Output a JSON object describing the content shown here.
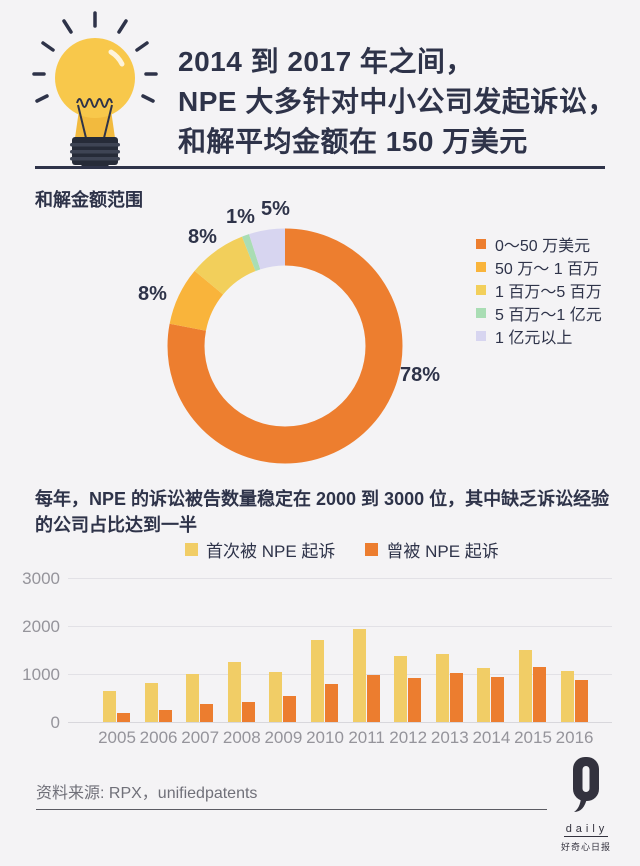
{
  "header": {
    "title_lines": [
      "2014 到 2017 年之间，",
      "NPE 大多针对中小公司发起诉讼，",
      "和解平均金额在 150 万美元"
    ]
  },
  "lawsuit_section": {
    "paragraph": "每年，NPE 的诉讼被告数量稳定在 2000 到 3000 位，其中缺乏诉讼经验的公司占比达到一半"
  },
  "footer": {
    "source": "资料来源: RPX，unifiedpatents",
    "logo": {
      "daily": "daily",
      "brand": "好奇心日报"
    }
  },
  "theme": {
    "background": "#F4F3F5",
    "text_dark": "#2E3349",
    "text_gray": "#95949B",
    "accent_orange": "#EC7D2F",
    "accent_yellow": "#F1CD66"
  },
  "chart_data": [
    {
      "type": "pie",
      "subtype": "donut",
      "title": "和解金额范围",
      "legend_position": "right",
      "slices": [
        {
          "label": "0～50 万美元",
          "value": 78,
          "pct": "78%",
          "color": "#ED7E2F"
        },
        {
          "label": "50 万～ 1 百万",
          "value": 8,
          "pct": "8%",
          "color": "#F9B43B"
        },
        {
          "label": "1 百万～5 百万",
          "value": 8,
          "pct": "8%",
          "color": "#F2CF5B"
        },
        {
          "label": "5 百万～1 亿元",
          "value": 1,
          "pct": "1%",
          "color": "#A9DDB4"
        },
        {
          "label": "1 亿元以上",
          "value": 5,
          "pct": "5%",
          "color": "#D7D5F0"
        }
      ]
    },
    {
      "type": "bar",
      "title": "每年，NPE 的诉讼被告数量稳定在 2000 到 3000 位，其中缺乏诉讼经验的公司占比达到一半",
      "categories": [
        "2005",
        "2006",
        "2007",
        "2008",
        "2009",
        "2010",
        "2011",
        "2012",
        "2013",
        "2014",
        "2015",
        "2016"
      ],
      "series": [
        {
          "name": "首次被 NPE 起诉",
          "color": "#F1CD66",
          "values": [
            650,
            820,
            990,
            1260,
            1050,
            1710,
            1930,
            1370,
            1410,
            1120,
            1510,
            1060
          ]
        },
        {
          "name": "曾被 NPE 起诉",
          "color": "#EC7D2F",
          "values": [
            190,
            250,
            380,
            420,
            550,
            800,
            970,
            920,
            1030,
            940,
            1140,
            880
          ]
        }
      ],
      "ylim": [
        0,
        3000
      ],
      "yticks": [
        0,
        1000,
        2000,
        3000
      ],
      "grid": true,
      "legend_position": "top-center",
      "xlabel": "",
      "ylabel": ""
    }
  ]
}
